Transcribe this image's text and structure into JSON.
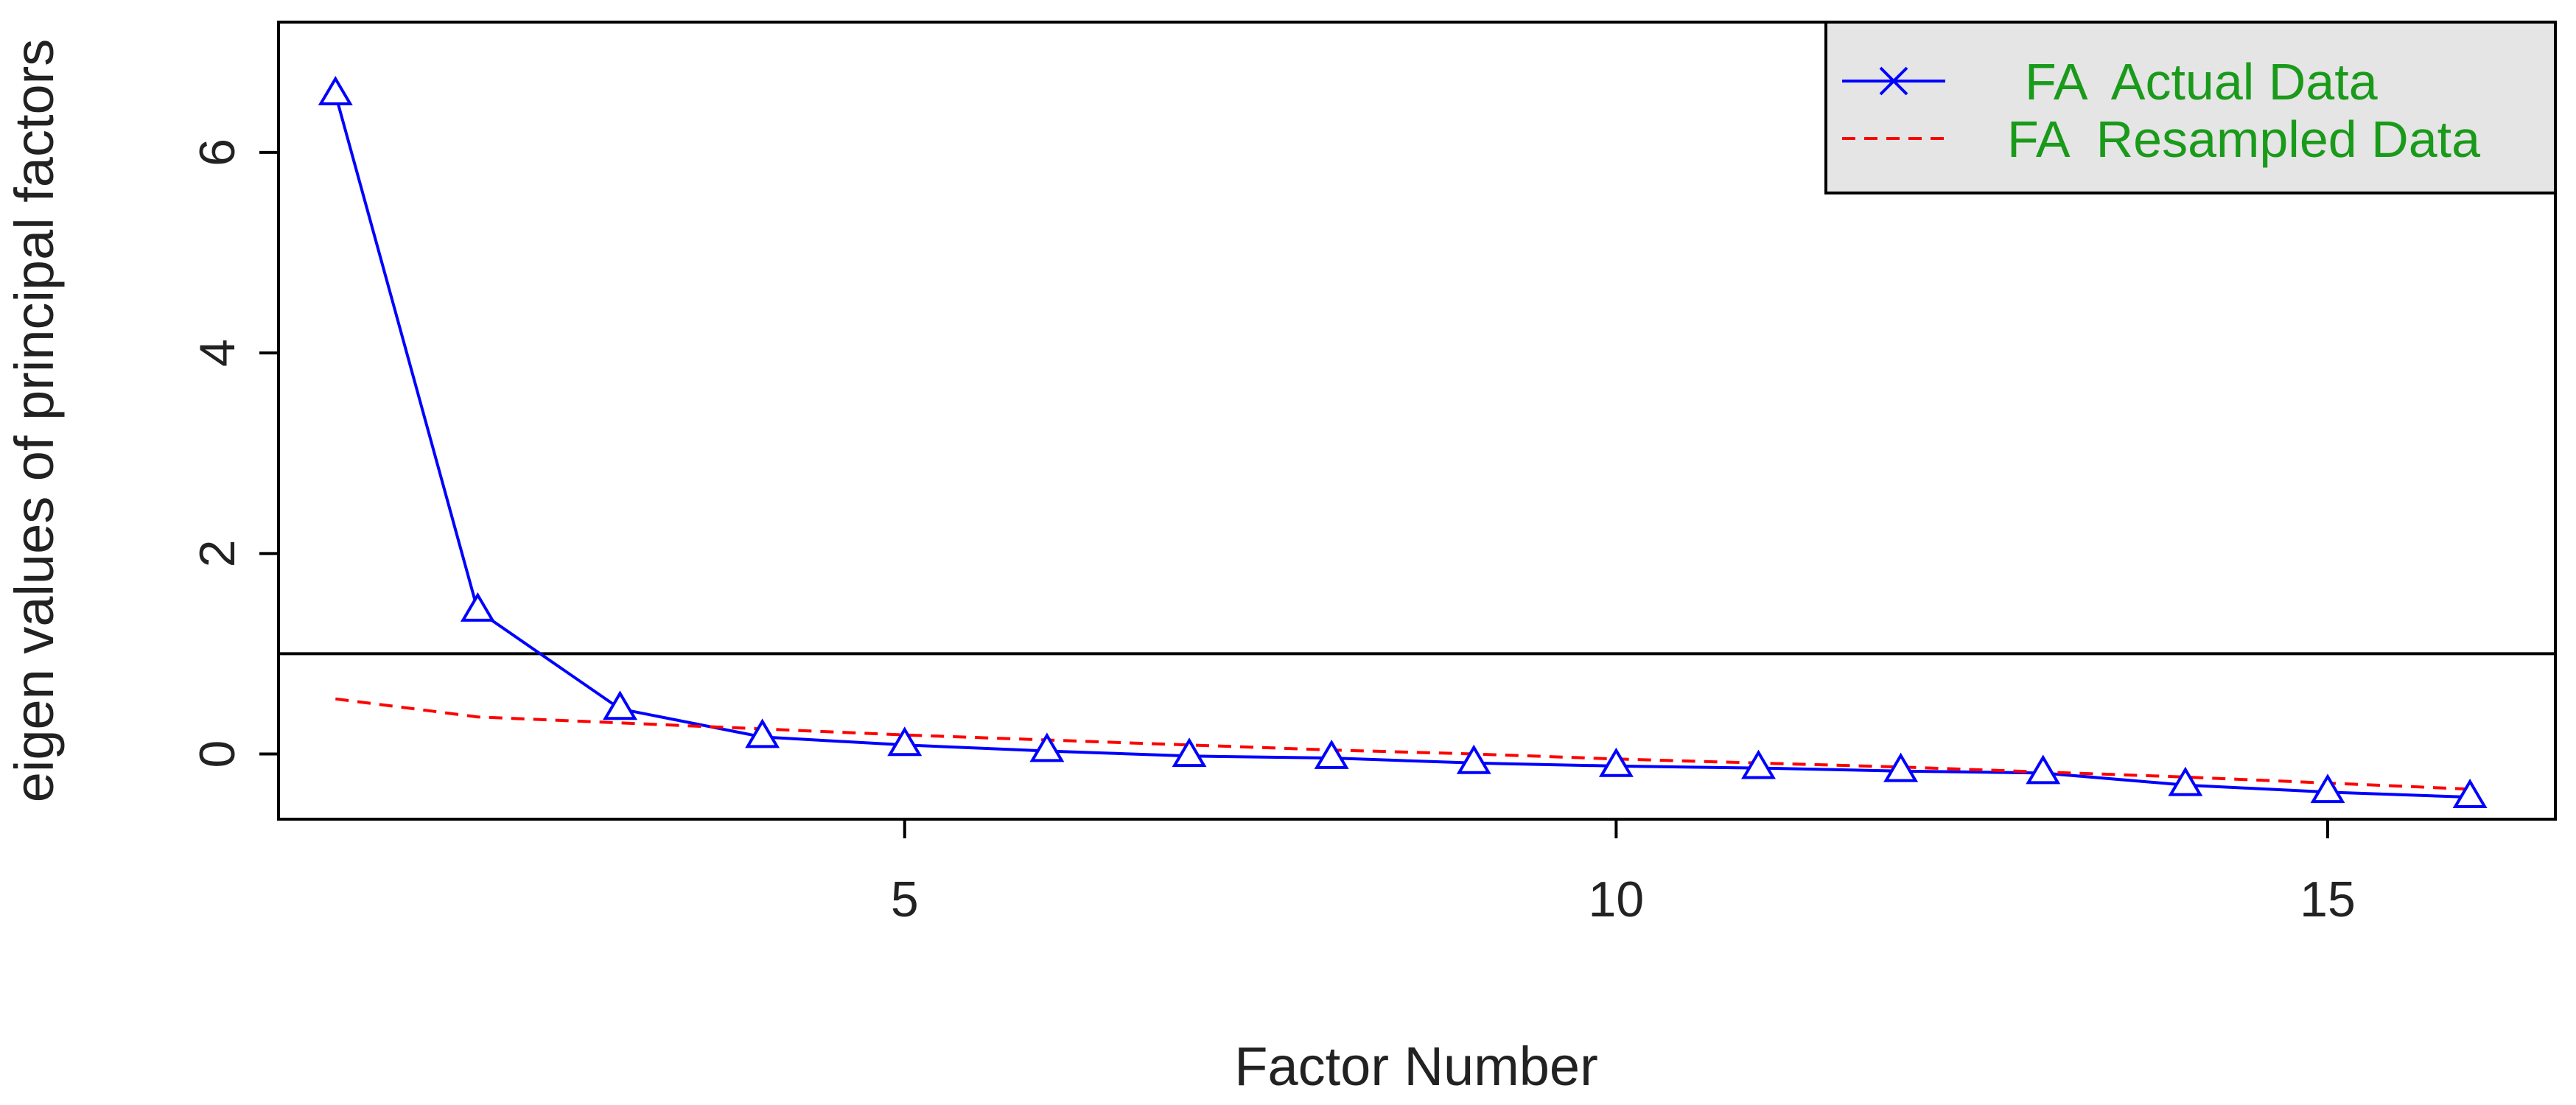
{
  "chart_data": {
    "type": "line",
    "title": "",
    "xlabel": "Factor Number",
    "ylabel": "eigen values of principal factors",
    "xlim": [
      0.6,
      16.6
    ],
    "ylim": [
      -0.65,
      7.3
    ],
    "x_ticks": [
      5,
      10,
      15
    ],
    "y_ticks": [
      0,
      2,
      4,
      6
    ],
    "reference_line": 1,
    "grid": false,
    "legend_position": "top-right",
    "x": [
      1,
      2,
      3,
      4,
      5,
      6,
      7,
      8,
      9,
      10,
      11,
      12,
      13,
      14,
      15,
      16
    ],
    "series": [
      {
        "name": "FA  Actual Data",
        "color": "#0000ff",
        "line_style": "solid",
        "marker": "triangle",
        "values": [
          6.58,
          1.43,
          0.45,
          0.17,
          0.09,
          0.03,
          -0.02,
          -0.04,
          -0.09,
          -0.12,
          -0.14,
          -0.17,
          -0.19,
          -0.31,
          -0.38,
          -0.43
        ]
      },
      {
        "name": "FA  Resampled Data",
        "color": "#ff0000",
        "line_style": "dashed",
        "marker": "none",
        "values": [
          0.55,
          0.37,
          0.31,
          0.25,
          0.19,
          0.14,
          0.09,
          0.04,
          0.0,
          -0.05,
          -0.09,
          -0.13,
          -0.18,
          -0.23,
          -0.29,
          -0.35
        ]
      }
    ],
    "legend_text_color": "#1a9a1a",
    "legend_background": "#e5e5e5",
    "reference_line_color": "#000000"
  }
}
